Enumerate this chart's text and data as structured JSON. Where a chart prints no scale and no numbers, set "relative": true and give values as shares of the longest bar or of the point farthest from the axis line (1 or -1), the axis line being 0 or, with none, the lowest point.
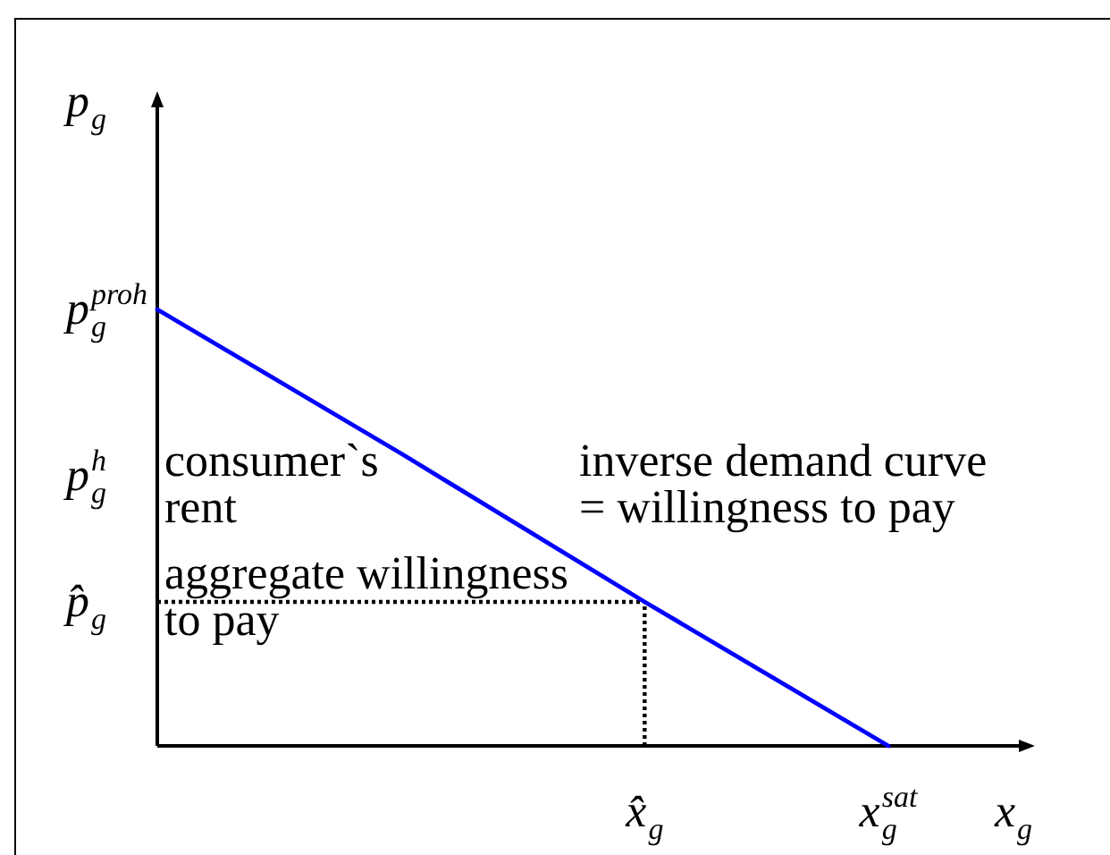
{
  "chart_data": {
    "type": "line",
    "relative": true,
    "xlabel": "x$_{g}$",
    "ylabel": "p$_{g}$",
    "categories": [
      null,
      null,
      "x̂$_{g}$",
      "x$_{g}$$^{sat}$"
    ],
    "series": [
      {
        "values": [
          1,
          0.67,
          0.33,
          0
        ],
        "color": "#0000ff"
      }
    ],
    "ref_lines": [
      {
        "axis": "y",
        "value": 0.33,
        "label": "p̂$_{g}$",
        "color": "#000000",
        "line_style": "dotted"
      },
      {
        "axis": "x",
        "value": "x̂$_{g}$",
        "color": "#000000",
        "line_style": "dotted"
      }
    ],
    "annotations": [
      "p$_{g}$$^{proh}$",
      "p$_{g}$$^{h}$",
      "consumer`s\nrent",
      "inverse demand curve\n= willingness to pay",
      "aggregate willingness\nto pay"
    ],
    "line_style": "solid"
  }
}
